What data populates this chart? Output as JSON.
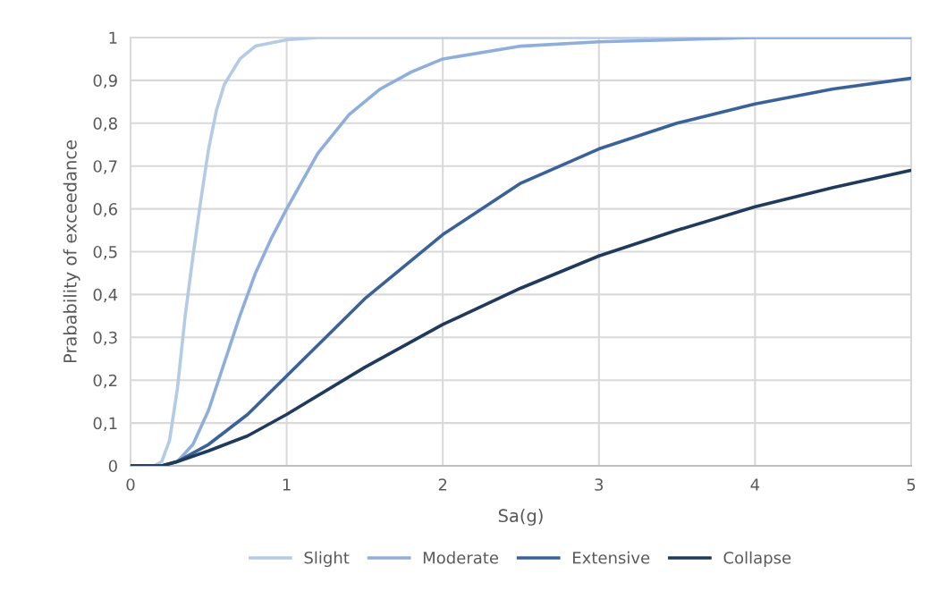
{
  "chart_data": {
    "type": "line",
    "xlabel": "Sa(g)",
    "ylabel": "Prabability of exceedance",
    "xlim": [
      0,
      5
    ],
    "xticks": [
      0,
      1,
      2,
      3,
      4,
      5
    ],
    "ylim": [
      0,
      1
    ],
    "yticks": [
      {
        "value": 0,
        "label": "0"
      },
      {
        "value": 0.1,
        "label": "0,1"
      },
      {
        "value": 0.2,
        "label": "0,2"
      },
      {
        "value": 0.3,
        "label": "0,3"
      },
      {
        "value": 0.4,
        "label": "0,4"
      },
      {
        "value": 0.5,
        "label": "0,5"
      },
      {
        "value": 0.6,
        "label": "0,6"
      },
      {
        "value": 0.7,
        "label": "0,7"
      },
      {
        "value": 0.8,
        "label": "0,8"
      },
      {
        "value": 0.9,
        "label": "0,9"
      },
      {
        "value": 1,
        "label": "1"
      }
    ],
    "grid": true,
    "legend": "bottom",
    "marker": "none",
    "line_style": "solid",
    "series": [
      {
        "name": "Slight",
        "color": "#b4cbe6",
        "x": [
          0,
          0.15,
          0.2,
          0.25,
          0.3,
          0.35,
          0.4,
          0.45,
          0.5,
          0.55,
          0.6,
          0.7,
          0.8,
          1.0,
          1.2,
          5
        ],
        "values": [
          0,
          0,
          0.01,
          0.06,
          0.18,
          0.35,
          0.49,
          0.62,
          0.74,
          0.83,
          0.89,
          0.95,
          0.98,
          0.995,
          1,
          1
        ]
      },
      {
        "name": "Moderate",
        "color": "#8faedb",
        "x": [
          0,
          0.2,
          0.3,
          0.4,
          0.5,
          0.6,
          0.7,
          0.8,
          0.9,
          1.0,
          1.2,
          1.4,
          1.6,
          1.8,
          2.0,
          2.5,
          3,
          4,
          5
        ],
        "values": [
          0,
          0,
          0.01,
          0.05,
          0.13,
          0.24,
          0.35,
          0.45,
          0.53,
          0.6,
          0.73,
          0.82,
          0.88,
          0.92,
          0.95,
          0.98,
          0.99,
          1,
          1
        ]
      },
      {
        "name": "Extensive",
        "color": "#3a6299",
        "x": [
          0,
          0.2,
          0.3,
          0.5,
          0.75,
          1.0,
          1.5,
          2,
          2.5,
          3,
          3.5,
          4,
          4.5,
          5
        ],
        "values": [
          0,
          0,
          0.01,
          0.05,
          0.12,
          0.21,
          0.39,
          0.54,
          0.66,
          0.74,
          0.8,
          0.845,
          0.88,
          0.905
        ]
      },
      {
        "name": "Collapse",
        "color": "#203a5c",
        "x": [
          0,
          0.2,
          0.3,
          0.5,
          0.75,
          1.0,
          1.5,
          2,
          2.5,
          3,
          3.5,
          4,
          4.5,
          5
        ],
        "values": [
          0,
          0,
          0.01,
          0.035,
          0.07,
          0.12,
          0.23,
          0.33,
          0.415,
          0.49,
          0.55,
          0.605,
          0.65,
          0.69
        ]
      }
    ]
  }
}
